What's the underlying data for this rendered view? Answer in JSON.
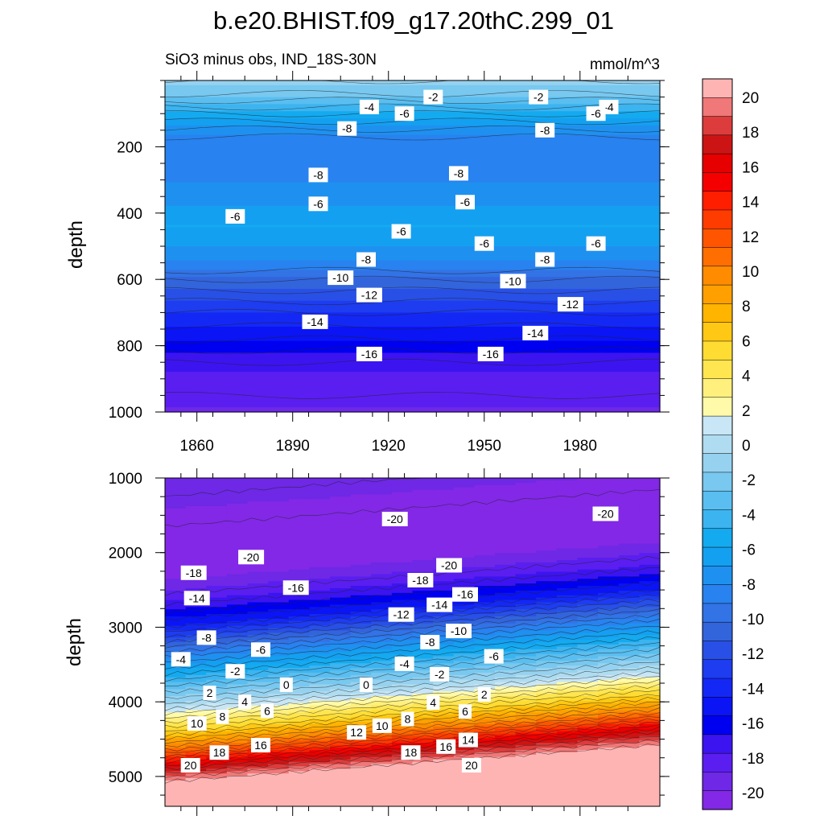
{
  "chart_data": {
    "type": "contour",
    "title": "b.e20.BHIST.f09_g17.20thC.299_01",
    "subtitle_left": "SiO3 minus obs, IND_18S-30N",
    "subtitle_right": "mmol/m^3",
    "colorbar": {
      "levels": [
        -20,
        -18,
        -16,
        -14,
        -12,
        -10,
        -8,
        -6,
        -4,
        -2,
        0,
        2,
        4,
        6,
        8,
        10,
        12,
        14,
        16,
        18,
        20
      ],
      "tick_labels": [
        "20",
        "18",
        "16",
        "14",
        "12",
        "10",
        "8",
        "6",
        "4",
        "2",
        "0",
        "-2",
        "-4",
        "-6",
        "-8",
        "-10",
        "-12",
        "-14",
        "-16",
        "-18",
        "-20"
      ],
      "colors_top_to_bottom": [
        "#ffb4b4",
        "#f07878",
        "#dc3c3c",
        "#cd1414",
        "#e60000",
        "#f50000",
        "#ff1e00",
        "#ff3c00",
        "#ff5500",
        "#ff6e00",
        "#ff8c00",
        "#ffa000",
        "#ffb400",
        "#ffc814",
        "#ffdc32",
        "#ffe650",
        "#fff07d",
        "#fffaaa",
        "#c8e6f5",
        "#afdcf0",
        "#96d2f0",
        "#78c8f0",
        "#5abef0",
        "#3cb4f0",
        "#14aaf0",
        "#14a0f0",
        "#1e91f0",
        "#2882f0",
        "#3273e6",
        "#3264dc",
        "#2850e6",
        "#1e3cf0",
        "#1428f5",
        "#0a14f5",
        "#0000f0",
        "#3c14f0",
        "#5a1ef0",
        "#6e28e6",
        "#8228e6"
      ]
    },
    "x_ticks": [
      1860,
      1890,
      1920,
      1950,
      1980
    ],
    "xlim": [
      1850,
      2005
    ],
    "panels": [
      {
        "name": "upper",
        "ylabel": "depth",
        "ylim": [
          1000,
          0
        ],
        "y_ticks": [
          200,
          400,
          600,
          800,
          1000
        ],
        "depth_profile": [
          {
            "depth": 0,
            "value": -1
          },
          {
            "depth": 40,
            "value": -2
          },
          {
            "depth": 100,
            "value": -5
          },
          {
            "depth": 170,
            "value": -8
          },
          {
            "depth": 240,
            "value": -8.5
          },
          {
            "depth": 330,
            "value": -7.5
          },
          {
            "depth": 440,
            "value": -5.5
          },
          {
            "depth": 520,
            "value": -7
          },
          {
            "depth": 600,
            "value": -10
          },
          {
            "depth": 700,
            "value": -13
          },
          {
            "depth": 780,
            "value": -15
          },
          {
            "depth": 850,
            "value": -17
          },
          {
            "depth": 1000,
            "value": -18.5
          }
        ],
        "contour_labels": [
          {
            "x": 1934,
            "y": 50,
            "text": "-2"
          },
          {
            "x": 1967,
            "y": 50,
            "text": "-2"
          },
          {
            "x": 1914,
            "y": 80,
            "text": "-4"
          },
          {
            "x": 1989,
            "y": 80,
            "text": "-4"
          },
          {
            "x": 1925,
            "y": 100,
            "text": "-6"
          },
          {
            "x": 1985,
            "y": 100,
            "text": "-6"
          },
          {
            "x": 1907,
            "y": 145,
            "text": "-8"
          },
          {
            "x": 1969,
            "y": 150,
            "text": "-8"
          },
          {
            "x": 1898,
            "y": 285,
            "text": "-8"
          },
          {
            "x": 1942,
            "y": 280,
            "text": "-8"
          },
          {
            "x": 1898,
            "y": 372,
            "text": "-6"
          },
          {
            "x": 1944,
            "y": 367,
            "text": "-6"
          },
          {
            "x": 1872,
            "y": 410,
            "text": "-6"
          },
          {
            "x": 1924,
            "y": 455,
            "text": "-6"
          },
          {
            "x": 1950,
            "y": 492,
            "text": "-6"
          },
          {
            "x": 1985,
            "y": 492,
            "text": "-6"
          },
          {
            "x": 1913,
            "y": 540,
            "text": "-8"
          },
          {
            "x": 1969,
            "y": 540,
            "text": "-8"
          },
          {
            "x": 1905,
            "y": 595,
            "text": "-10"
          },
          {
            "x": 1959,
            "y": 605,
            "text": "-10"
          },
          {
            "x": 1914,
            "y": 647,
            "text": "-12"
          },
          {
            "x": 1977,
            "y": 675,
            "text": "-12"
          },
          {
            "x": 1897,
            "y": 728,
            "text": "-14"
          },
          {
            "x": 1966,
            "y": 762,
            "text": "-14"
          },
          {
            "x": 1914,
            "y": 825,
            "text": "-16"
          },
          {
            "x": 1952,
            "y": 825,
            "text": "-16"
          }
        ]
      },
      {
        "name": "lower",
        "ylabel": "depth",
        "ylim": [
          5400,
          1000
        ],
        "y_ticks": [
          1000,
          2000,
          3000,
          4000,
          5000
        ],
        "depth_profile": [
          {
            "depth": 1000,
            "value": -19
          },
          {
            "depth": 1400,
            "value": -20
          },
          {
            "depth": 2100,
            "value": -19.5
          },
          {
            "depth": 2450,
            "value": -17
          },
          {
            "depth": 2750,
            "value": -14
          },
          {
            "depth": 3150,
            "value": -8
          },
          {
            "depth": 3500,
            "value": -3.5
          },
          {
            "depth": 3750,
            "value": -0.5
          },
          {
            "depth": 3850,
            "value": 1
          },
          {
            "depth": 4150,
            "value": 6
          },
          {
            "depth": 4400,
            "value": 11
          },
          {
            "depth": 4650,
            "value": 17
          },
          {
            "depth": 4850,
            "value": 20.5
          },
          {
            "depth": 5400,
            "value": 21
          }
        ],
        "depth_slope_per_year": -3.2,
        "contour_labels": [
          {
            "x": 1922,
            "y": 1550,
            "text": "-20"
          },
          {
            "x": 1988,
            "y": 1480,
            "text": "-20"
          },
          {
            "x": 1877,
            "y": 2060,
            "text": "-20"
          },
          {
            "x": 1939,
            "y": 2170,
            "text": "-20"
          },
          {
            "x": 1859,
            "y": 2270,
            "text": "-18"
          },
          {
            "x": 1930,
            "y": 2370,
            "text": "-18"
          },
          {
            "x": 1891,
            "y": 2470,
            "text": "-16"
          },
          {
            "x": 1944,
            "y": 2560,
            "text": "-16"
          },
          {
            "x": 1860,
            "y": 2610,
            "text": "-14"
          },
          {
            "x": 1936,
            "y": 2700,
            "text": "-14"
          },
          {
            "x": 1924,
            "y": 2830,
            "text": "-12"
          },
          {
            "x": 1942,
            "y": 3050,
            "text": "-10"
          },
          {
            "x": 1863,
            "y": 3140,
            "text": "-8"
          },
          {
            "x": 1933,
            "y": 3200,
            "text": "-8"
          },
          {
            "x": 1880,
            "y": 3300,
            "text": "-6"
          },
          {
            "x": 1953,
            "y": 3390,
            "text": "-6"
          },
          {
            "x": 1855,
            "y": 3430,
            "text": "-4"
          },
          {
            "x": 1925,
            "y": 3490,
            "text": "-4"
          },
          {
            "x": 1872,
            "y": 3590,
            "text": "-2"
          },
          {
            "x": 1936,
            "y": 3630,
            "text": "-2"
          },
          {
            "x": 1888,
            "y": 3770,
            "text": "0"
          },
          {
            "x": 1913,
            "y": 3770,
            "text": "0"
          },
          {
            "x": 1864,
            "y": 3880,
            "text": "2"
          },
          {
            "x": 1950,
            "y": 3900,
            "text": "2"
          },
          {
            "x": 1875,
            "y": 4000,
            "text": "4"
          },
          {
            "x": 1934,
            "y": 4010,
            "text": "4"
          },
          {
            "x": 1882,
            "y": 4120,
            "text": "6"
          },
          {
            "x": 1944,
            "y": 4130,
            "text": "6"
          },
          {
            "x": 1868,
            "y": 4200,
            "text": "8"
          },
          {
            "x": 1926,
            "y": 4230,
            "text": "8"
          },
          {
            "x": 1860,
            "y": 4290,
            "text": "10"
          },
          {
            "x": 1918,
            "y": 4320,
            "text": "10"
          },
          {
            "x": 1910,
            "y": 4410,
            "text": "12"
          },
          {
            "x": 1945,
            "y": 4510,
            "text": "14"
          },
          {
            "x": 1880,
            "y": 4580,
            "text": "16"
          },
          {
            "x": 1938,
            "y": 4600,
            "text": "16"
          },
          {
            "x": 1867,
            "y": 4680,
            "text": "18"
          },
          {
            "x": 1927,
            "y": 4680,
            "text": "18"
          },
          {
            "x": 1858,
            "y": 4850,
            "text": "20"
          },
          {
            "x": 1946,
            "y": 4850,
            "text": "20"
          }
        ]
      }
    ]
  }
}
